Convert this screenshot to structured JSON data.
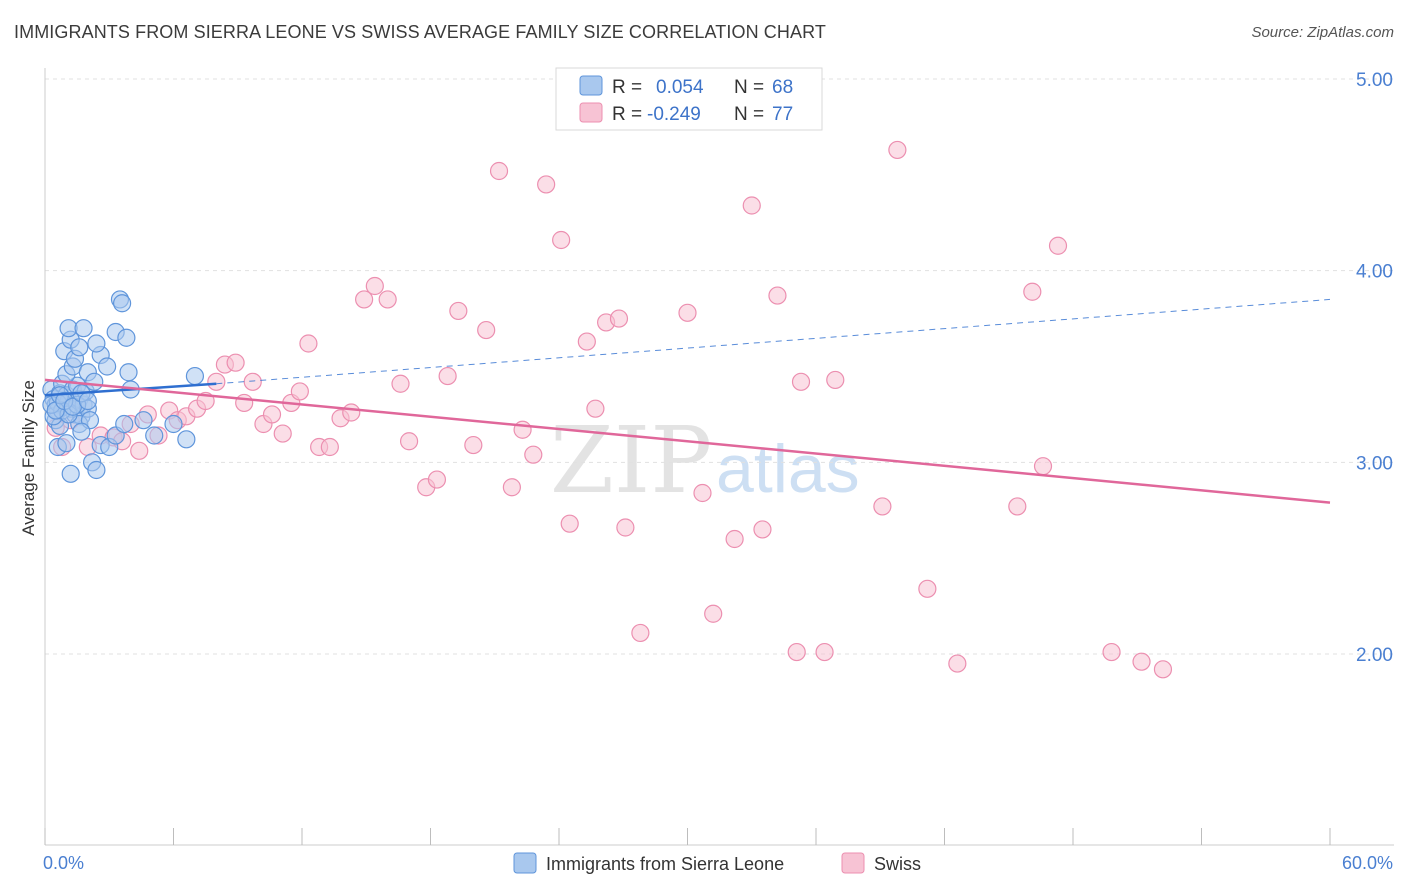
{
  "title": "IMMIGRANTS FROM SIERRA LEONE VS SWISS AVERAGE FAMILY SIZE CORRELATION CHART",
  "source": "Source: ZipAtlas.com",
  "watermark": {
    "zip": "ZIP",
    "atlas": "atlas"
  },
  "colors": {
    "blue_fill": "#a9c8ee",
    "blue_stroke": "#5f95db",
    "blue_line": "#2f6fd0",
    "pink_fill": "#f7c3d4",
    "pink_stroke": "#ec8fb0",
    "pink_line": "#e0679a",
    "tick_color": "#4a7fd1"
  },
  "legend": {
    "rows": [
      {
        "r_label": "R =",
        "r_value": "0.054",
        "n_label": "N =",
        "n_value": "68"
      },
      {
        "r_label": "R =",
        "r_value": "-0.249",
        "n_label": "N =",
        "n_value": "77"
      }
    ]
  },
  "bottom_legend": [
    "Immigrants from Sierra Leone",
    "Swiss"
  ],
  "chart_data": {
    "type": "scatter",
    "title": "IMMIGRANTS FROM SIERRA LEONE VS SWISS AVERAGE FAMILY SIZE CORRELATION CHART",
    "xlabel": "",
    "ylabel": "Average Family Size",
    "xlim": [
      0,
      60
    ],
    "ylim": [
      1.0,
      5.2
    ],
    "x_tick_labels": [
      "0.0%",
      "60.0%"
    ],
    "y_ticks": [
      2.0,
      3.0,
      4.0,
      5.0
    ],
    "y_tick_labels": [
      "2.00",
      "3.00",
      "4.00",
      "5.00"
    ],
    "grid": true,
    "series": [
      {
        "name": "Immigrants from Sierra Leone",
        "r": 0.054,
        "n": 68,
        "trend": {
          "x0": 0,
          "y0": 3.35,
          "x1": 8,
          "y1": 3.41,
          "dashed_to_x": 60,
          "dashed_to_y": 3.85
        },
        "points": [
          [
            0.3,
            3.38
          ],
          [
            0.4,
            3.33
          ],
          [
            0.5,
            3.3
          ],
          [
            0.6,
            3.27
          ],
          [
            0.7,
            3.36
          ],
          [
            0.8,
            3.41
          ],
          [
            0.9,
            3.29
          ],
          [
            1.0,
            3.35
          ],
          [
            1.1,
            3.32
          ],
          [
            1.2,
            3.28
          ],
          [
            1.3,
            3.38
          ],
          [
            1.4,
            3.25
          ],
          [
            1.5,
            3.4
          ],
          [
            1.6,
            3.33
          ],
          [
            1.7,
            3.24
          ],
          [
            1.8,
            3.3
          ],
          [
            1.9,
            3.37
          ],
          [
            2.0,
            3.28
          ],
          [
            0.5,
            3.22
          ],
          [
            0.7,
            3.19
          ],
          [
            1.0,
            3.46
          ],
          [
            1.3,
            3.5
          ],
          [
            1.6,
            3.2
          ],
          [
            2.1,
            3.22
          ],
          [
            0.9,
            3.58
          ],
          [
            1.2,
            3.64
          ],
          [
            1.4,
            3.54
          ],
          [
            1.6,
            3.6
          ],
          [
            2.0,
            3.47
          ],
          [
            2.3,
            3.42
          ],
          [
            2.6,
            3.56
          ],
          [
            2.9,
            3.5
          ],
          [
            1.1,
            3.7
          ],
          [
            1.8,
            3.7
          ],
          [
            2.4,
            3.62
          ],
          [
            3.3,
            3.68
          ],
          [
            3.5,
            3.85
          ],
          [
            3.6,
            3.83
          ],
          [
            3.8,
            3.65
          ],
          [
            3.9,
            3.47
          ],
          [
            0.6,
            3.08
          ],
          [
            1.0,
            3.1
          ],
          [
            1.2,
            2.94
          ],
          [
            1.7,
            3.16
          ],
          [
            2.2,
            3.0
          ],
          [
            2.4,
            2.96
          ],
          [
            2.6,
            3.09
          ],
          [
            3.0,
            3.08
          ],
          [
            3.3,
            3.14
          ],
          [
            3.7,
            3.2
          ],
          [
            4.0,
            3.38
          ],
          [
            4.6,
            3.22
          ],
          [
            5.1,
            3.14
          ],
          [
            0.4,
            3.24
          ],
          [
            0.6,
            3.31
          ],
          [
            0.8,
            3.27
          ],
          [
            1.1,
            3.25
          ],
          [
            1.5,
            3.3
          ],
          [
            0.3,
            3.3
          ],
          [
            0.5,
            3.27
          ],
          [
            0.7,
            3.35
          ],
          [
            0.9,
            3.32
          ],
          [
            1.3,
            3.29
          ],
          [
            1.7,
            3.36
          ],
          [
            2.0,
            3.32
          ],
          [
            6.0,
            3.2
          ],
          [
            6.6,
            3.12
          ],
          [
            7.0,
            3.45
          ]
        ]
      },
      {
        "name": "Swiss",
        "r": -0.249,
        "n": 77,
        "trend": {
          "x0": 0,
          "y0": 3.43,
          "x1": 60,
          "y1": 2.79
        },
        "points": [
          [
            0.5,
            3.18
          ],
          [
            0.8,
            3.08
          ],
          [
            1.2,
            3.22
          ],
          [
            2.0,
            3.08
          ],
          [
            2.6,
            3.14
          ],
          [
            3.2,
            3.13
          ],
          [
            3.6,
            3.11
          ],
          [
            4.0,
            3.2
          ],
          [
            4.4,
            3.06
          ],
          [
            4.8,
            3.25
          ],
          [
            5.3,
            3.14
          ],
          [
            5.8,
            3.27
          ],
          [
            6.2,
            3.22
          ],
          [
            6.6,
            3.24
          ],
          [
            7.1,
            3.28
          ],
          [
            7.5,
            3.32
          ],
          [
            8.0,
            3.42
          ],
          [
            8.4,
            3.51
          ],
          [
            8.9,
            3.52
          ],
          [
            9.3,
            3.31
          ],
          [
            9.7,
            3.42
          ],
          [
            10.2,
            3.2
          ],
          [
            10.6,
            3.25
          ],
          [
            11.1,
            3.15
          ],
          [
            11.5,
            3.31
          ],
          [
            11.9,
            3.37
          ],
          [
            12.3,
            3.62
          ],
          [
            12.8,
            3.08
          ],
          [
            13.3,
            3.08
          ],
          [
            13.8,
            3.23
          ],
          [
            14.3,
            3.26
          ],
          [
            14.9,
            3.85
          ],
          [
            15.4,
            3.92
          ],
          [
            16.0,
            3.85
          ],
          [
            16.6,
            3.41
          ],
          [
            17.0,
            3.11
          ],
          [
            17.8,
            2.87
          ],
          [
            18.3,
            2.91
          ],
          [
            18.8,
            3.45
          ],
          [
            19.3,
            3.79
          ],
          [
            20.0,
            3.09
          ],
          [
            20.6,
            3.69
          ],
          [
            21.2,
            4.52
          ],
          [
            21.8,
            2.87
          ],
          [
            22.3,
            3.17
          ],
          [
            22.8,
            3.04
          ],
          [
            23.4,
            4.45
          ],
          [
            24.1,
            4.16
          ],
          [
            24.5,
            2.68
          ],
          [
            25.3,
            3.63
          ],
          [
            25.7,
            3.28
          ],
          [
            26.2,
            3.73
          ],
          [
            26.8,
            3.75
          ],
          [
            27.1,
            2.66
          ],
          [
            27.8,
            2.11
          ],
          [
            30.0,
            3.78
          ],
          [
            30.7,
            2.84
          ],
          [
            31.2,
            2.21
          ],
          [
            32.2,
            2.6
          ],
          [
            33.0,
            4.34
          ],
          [
            33.5,
            2.65
          ],
          [
            34.2,
            3.87
          ],
          [
            35.1,
            2.01
          ],
          [
            35.3,
            3.42
          ],
          [
            36.4,
            2.01
          ],
          [
            36.9,
            3.43
          ],
          [
            39.1,
            2.77
          ],
          [
            39.8,
            4.63
          ],
          [
            41.2,
            2.34
          ],
          [
            42.6,
            1.95
          ],
          [
            45.4,
            2.77
          ],
          [
            46.1,
            3.89
          ],
          [
            46.6,
            2.98
          ],
          [
            47.3,
            4.13
          ],
          [
            49.8,
            2.01
          ],
          [
            51.2,
            1.96
          ],
          [
            52.2,
            1.92
          ]
        ]
      }
    ]
  }
}
